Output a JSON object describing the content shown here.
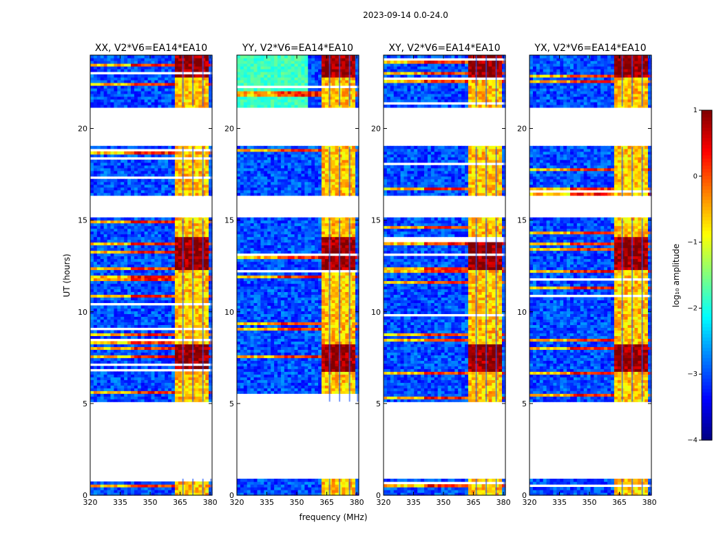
{
  "chart_data": {
    "type": "heatmap",
    "title": "2023-09-14 0.0-24.0",
    "xlabel": "frequency (MHz)",
    "ylabel": "UT (hours)",
    "xlim": [
      320,
      381
    ],
    "ylim": [
      0,
      24
    ],
    "xticks": [
      "320",
      "335",
      "350",
      "365",
      "380"
    ],
    "yticks": [
      "0",
      "5",
      "10",
      "15",
      "20"
    ],
    "colormap": "jet",
    "colorbar": {
      "label": "log₁₀ amplitude",
      "range": [
        -4,
        1
      ],
      "ticks": [
        "1",
        "0",
        "−1",
        "−2",
        "−3",
        "−4"
      ]
    },
    "panels": [
      {
        "title": "XX, V2*V6=EA14*EA10"
      },
      {
        "title": "YY, V2*V6=EA14*EA10"
      },
      {
        "title": "XY, V2*V6=EA14*EA10"
      },
      {
        "title": "YX, V2*V6=EA14*EA10"
      }
    ],
    "data_time_ranges_hours": [
      [
        0.0,
        0.9
      ],
      [
        5.1,
        15.1
      ],
      [
        16.3,
        19.0
      ],
      [
        21.2,
        24.0
      ]
    ],
    "empty_time_ranges_hours": [
      [
        0.9,
        5.1
      ],
      [
        15.1,
        16.3
      ],
      [
        19.0,
        21.2
      ]
    ],
    "strong_rfi_band_mhz": [
      362,
      380
    ],
    "strong_rfi_channels_mhz": [
      364,
      369,
      374,
      378
    ],
    "bright_time_bands_hours": [
      [
        6.8,
        8.3
      ],
      [
        12.3,
        14.1
      ],
      [
        22.8,
        24.0
      ]
    ],
    "band_levels_log10": {
      "background": -3.0,
      "rfi_band_normal": -0.6,
      "rfi_band_bright": 0.9,
      "horizontal_stripe_bright": 0.2,
      "background_2x_band": -1.8
    }
  }
}
